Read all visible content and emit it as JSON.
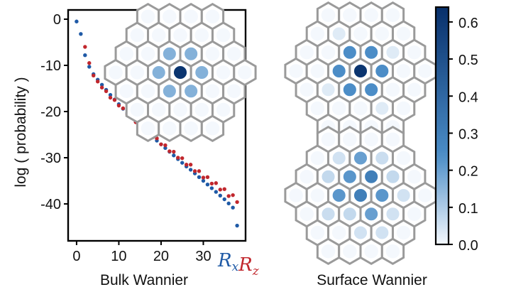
{
  "colors": {
    "bulk_x": "#1f5aa6",
    "bulk_z": "#c1272d",
    "cell_stroke": "#9a9a9a",
    "cmap_low": "#f4f8fd",
    "cmap_high": "#08306b"
  },
  "chart_data": [
    {
      "type": "scatter",
      "xlabel": "Bulk Wannier",
      "ylabel": "log ( probability )",
      "xlim": [
        -2,
        40
      ],
      "ylim": [
        -48,
        2
      ],
      "xticks": [
        0,
        10,
        20,
        30
      ],
      "yticks": [
        0,
        -10,
        -20,
        -30,
        -40
      ],
      "grid": false,
      "series": [
        {
          "name": "R_x",
          "label_main": "R",
          "label_sub": "x",
          "color": "#1f5aa6",
          "x": [
            0,
            1,
            2,
            3,
            4,
            5,
            6,
            7,
            8,
            9,
            10,
            11,
            12,
            13,
            14,
            15,
            16,
            17,
            18,
            19,
            20,
            21,
            22,
            23,
            24,
            25,
            26,
            27,
            28,
            29,
            30,
            31,
            32,
            33,
            34,
            35,
            36,
            37,
            38
          ],
          "y": [
            -0.5,
            -3.2,
            -7.8,
            -10.3,
            -11.9,
            -13.1,
            -14.2,
            -15.3,
            -16.4,
            -17.4,
            -18.4,
            -19.4,
            -20.3,
            -21.2,
            -22.1,
            -23.0,
            -23.8,
            -24.7,
            -25.5,
            -26.3,
            -27.1,
            -27.9,
            -28.7,
            -29.5,
            -30.3,
            -31.1,
            -31.9,
            -32.6,
            -33.4,
            -34.2,
            -35.0,
            -35.8,
            -36.6,
            -37.4,
            -38.2,
            -39.0,
            -39.9,
            -40.8,
            -44.7
          ]
        },
        {
          "name": "R_z",
          "label_main": "R",
          "label_sub": "z",
          "color": "#c1272d",
          "x": [
            2,
            3,
            4,
            5,
            6,
            7,
            8,
            9,
            10,
            11,
            12,
            13,
            14,
            15,
            16,
            17,
            18,
            19,
            20,
            21,
            22,
            23,
            24,
            25,
            26,
            27,
            28,
            29,
            30,
            31,
            32,
            33,
            34,
            35,
            36,
            37,
            38
          ],
          "y": [
            -6.0,
            -9.5,
            -12.2,
            -13.5,
            -14.8,
            -15.6,
            -17.0,
            -17.5,
            -18.7,
            -19.3,
            -20.6,
            -21.0,
            -22.3,
            -22.6,
            -24.0,
            -24.3,
            -25.6,
            -25.8,
            -27.1,
            -27.3,
            -28.6,
            -28.7,
            -30.0,
            -30.1,
            -31.5,
            -31.5,
            -32.9,
            -32.9,
            -34.3,
            -34.2,
            -35.6,
            -35.5,
            -36.9,
            -36.8,
            -38.3,
            -38.1,
            -39.6
          ]
        }
      ]
    },
    {
      "type": "heatmap",
      "xlabel": "Surface Wannier",
      "layout": "hexagonal",
      "panels": [
        {
          "panel": "bulk-inset",
          "cells": [
            {
              "q": 0,
              "r": 0,
              "v": 0.62
            },
            {
              "q": 1,
              "r": 0,
              "v": 0.16
            },
            {
              "q": -1,
              "r": 0,
              "v": 0.16
            },
            {
              "q": 0,
              "r": 1,
              "v": 0.16
            },
            {
              "q": 0,
              "r": -1,
              "v": 0.16
            },
            {
              "q": 1,
              "r": -1,
              "v": 0.16
            },
            {
              "q": -1,
              "r": 1,
              "v": 0.16
            }
          ]
        },
        {
          "panel": "surface-top",
          "cells": [
            {
              "q": 0,
              "r": 0,
              "v": 0.62
            },
            {
              "q": 1,
              "r": 0,
              "v": 0.24
            },
            {
              "q": -1,
              "r": 0,
              "v": 0.24
            },
            {
              "q": 0,
              "r": 1,
              "v": 0.24
            },
            {
              "q": 0,
              "r": -1,
              "v": 0.24
            },
            {
              "q": 1,
              "r": -1,
              "v": 0.24
            },
            {
              "q": -1,
              "r": 1,
              "v": 0.24
            },
            {
              "q": 0,
              "r": 2,
              "v": 0.03
            },
            {
              "q": 0,
              "r": -2,
              "v": 0.03
            },
            {
              "q": 2,
              "r": -1,
              "v": 0.03
            },
            {
              "q": -2,
              "r": 1,
              "v": 0.03
            }
          ]
        },
        {
          "panel": "surface-bottom",
          "cells": [
            {
              "q": 0,
              "r": 0,
              "v": 0.3
            },
            {
              "q": 1,
              "r": -1,
              "v": 0.3
            },
            {
              "q": 1,
              "r": 0,
              "v": 0.22
            },
            {
              "q": 0,
              "r": -1,
              "v": 0.22
            },
            {
              "q": -1,
              "r": 0,
              "v": 0.22
            },
            {
              "q": 0,
              "r": 1,
              "v": 0.2
            },
            {
              "q": 1,
              "r": -2,
              "v": 0.2
            },
            {
              "q": -1,
              "r": 1,
              "v": 0.07
            },
            {
              "q": 2,
              "r": -1,
              "v": 0.07
            },
            {
              "q": -1,
              "r": -1,
              "v": 0.07
            },
            {
              "q": 2,
              "r": -2,
              "v": 0.06
            },
            {
              "q": -2,
              "r": 1,
              "v": 0.06
            },
            {
              "q": -1,
              "r": 2,
              "v": 0.05
            },
            {
              "q": 0,
              "r": 2,
              "v": 0.05
            },
            {
              "q": 1,
              "r": 1,
              "v": 0.05
            },
            {
              "q": 0,
              "r": -2,
              "v": 0.05
            },
            {
              "q": 2,
              "r": 0,
              "v": 0.05
            }
          ]
        }
      ],
      "colorbar": {
        "vmin": 0.0,
        "vmax": 0.64,
        "ticks": [
          "0.0",
          "0.1",
          "0.2",
          "0.3",
          "0.4",
          "0.5",
          "0.6"
        ],
        "tick_values": [
          0.0,
          0.1,
          0.2,
          0.3,
          0.4,
          0.5,
          0.6
        ]
      }
    }
  ]
}
